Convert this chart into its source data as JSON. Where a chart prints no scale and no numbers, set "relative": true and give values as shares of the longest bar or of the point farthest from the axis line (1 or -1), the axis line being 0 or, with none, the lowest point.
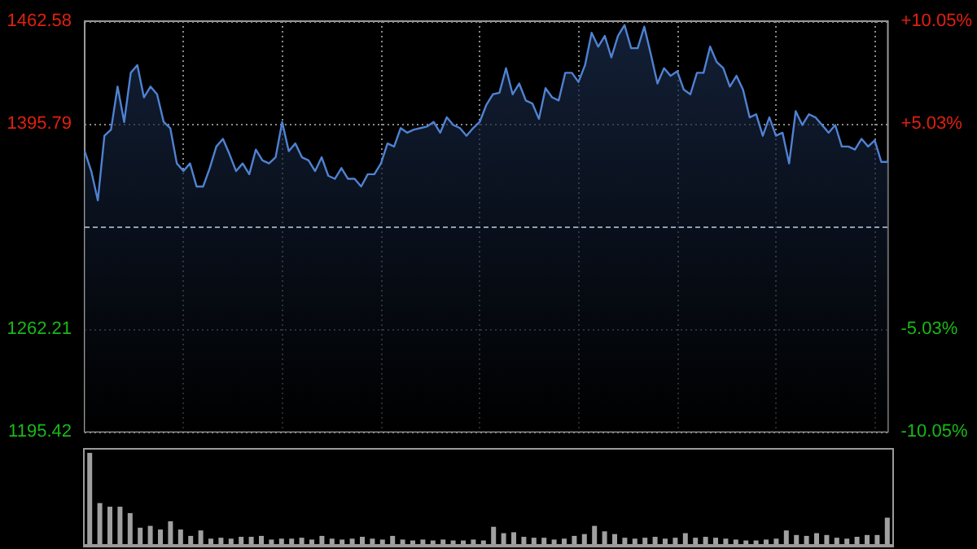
{
  "chart_data": [
    {
      "type": "area",
      "categories": [
        null,
        null,
        null,
        null,
        null,
        null,
        null,
        null,
        null,
        null,
        null,
        null,
        null,
        null,
        null,
        null,
        null,
        null,
        null,
        null,
        null,
        null,
        null,
        null,
        null,
        null,
        null,
        null,
        null,
        null,
        null,
        null,
        null,
        null,
        null,
        null,
        null,
        null,
        null,
        null,
        null,
        null,
        null,
        null,
        null,
        null,
        null,
        null,
        null,
        null,
        null,
        null,
        null,
        null,
        null,
        null,
        null,
        null,
        null,
        null,
        null,
        null,
        null,
        null,
        null,
        null,
        null,
        null,
        null,
        null,
        null,
        null,
        null,
        null,
        null,
        null,
        null,
        null,
        null,
        null,
        null,
        null,
        null,
        null,
        null,
        null,
        null,
        null,
        null,
        null,
        null,
        null,
        null,
        null,
        null,
        null,
        null,
        null,
        null,
        null,
        null,
        null,
        null,
        null,
        null,
        null,
        null,
        null,
        null,
        null,
        null,
        null,
        null,
        null,
        null,
        null,
        null,
        null,
        null,
        null,
        null,
        null,
        null
      ],
      "series": [
        {
          "color": "#4f82d2",
          "values": [
            1378,
            1365,
            1346,
            1388,
            1392,
            1420,
            1397,
            1429,
            1434,
            1413,
            1420,
            1415,
            1397,
            1393,
            1370,
            1365,
            1370,
            1355,
            1355,
            1367,
            1381,
            1386,
            1376,
            1365,
            1370,
            1363,
            1379,
            1372,
            1370,
            1374,
            1397,
            1378,
            1383,
            1374,
            1372,
            1365,
            1374,
            1362,
            1360,
            1367,
            1360,
            1360,
            1355,
            1363,
            1363,
            1370,
            1383,
            1381,
            1393,
            1390,
            1392,
            1393,
            1394,
            1397,
            1390,
            1400,
            1395,
            1393,
            1388,
            1393,
            1397,
            1408,
            1415,
            1416,
            1432,
            1415,
            1422,
            1411,
            1409,
            1399,
            1419,
            1413,
            1411,
            1429,
            1429,
            1423,
            1434,
            1455,
            1446,
            1453,
            1439,
            1453,
            1460,
            1445,
            1445,
            1459,
            1441,
            1422,
            1432,
            1427,
            1430,
            1418,
            1415,
            1429,
            1429,
            1446,
            1436,
            1432,
            1420,
            1427,
            1418,
            1400,
            1402,
            1388,
            1400,
            1388,
            1390,
            1370,
            1404,
            1395,
            1402,
            1400,
            1395,
            1390,
            1395,
            1381,
            1381,
            1379,
            1386,
            1381,
            1385,
            1371,
            1371
          ]
        }
      ],
      "ylim": [
        1195.42,
        1462.58
      ],
      "yticks": [
        1195.42,
        1262.21,
        1395.79,
        1462.58
      ],
      "y2lim": [
        -10.05,
        10.05
      ],
      "y2ticks": [
        {
          "value": -10.05,
          "label": "-10.05%"
        },
        {
          "value": -5.03,
          "label": "-5.03%"
        },
        {
          "value": 5.03,
          "label": "+5.03%"
        },
        {
          "value": 10.05,
          "label": "+10.05%"
        }
      ],
      "ref_lines": [
        {
          "axis": "y",
          "value": 1329,
          "label": null,
          "line_style": "dashed",
          "color": "#8fa0b0"
        }
      ],
      "grid": true,
      "tick_labels": "y"
    },
    {
      "type": "bar",
      "relative": true,
      "categories": [
        null,
        null,
        null,
        null,
        null,
        null,
        null,
        null,
        null,
        null,
        null,
        null,
        null,
        null,
        null,
        null,
        null,
        null,
        null,
        null,
        null,
        null,
        null,
        null,
        null,
        null,
        null,
        null,
        null,
        null,
        null,
        null,
        null,
        null,
        null,
        null,
        null,
        null,
        null,
        null,
        null,
        null,
        null,
        null,
        null,
        null,
        null,
        null,
        null,
        null,
        null,
        null,
        null,
        null,
        null,
        null,
        null,
        null,
        null,
        null,
        null,
        null,
        null,
        null,
        null,
        null,
        null,
        null,
        null,
        null,
        null,
        null,
        null,
        null,
        null,
        null,
        null,
        null,
        null,
        null
      ],
      "series": [
        {
          "color": "#a0a0a0",
          "values": [
            1.0,
            0.45,
            0.41,
            0.41,
            0.34,
            0.18,
            0.2,
            0.16,
            0.25,
            0.16,
            0.09,
            0.15,
            0.06,
            0.07,
            0.06,
            0.08,
            0.08,
            0.09,
            0.05,
            0.06,
            0.06,
            0.07,
            0.05,
            0.09,
            0.06,
            0.05,
            0.06,
            0.08,
            0.06,
            0.05,
            0.09,
            0.05,
            0.04,
            0.05,
            0.04,
            0.05,
            0.04,
            0.04,
            0.05,
            0.04,
            0.19,
            0.12,
            0.13,
            0.08,
            0.07,
            0.07,
            0.05,
            0.06,
            0.09,
            0.11,
            0.2,
            0.14,
            0.11,
            0.07,
            0.06,
            0.07,
            0.08,
            0.06,
            0.07,
            0.12,
            0.07,
            0.08,
            0.07,
            0.06,
            0.05,
            0.04,
            0.04,
            0.05,
            0.06,
            0.15,
            0.1,
            0.09,
            0.12,
            0.1,
            0.07,
            0.06,
            0.08,
            0.1,
            0.1,
            0.29
          ]
        }
      ],
      "tick_labels": false
    }
  ]
}
